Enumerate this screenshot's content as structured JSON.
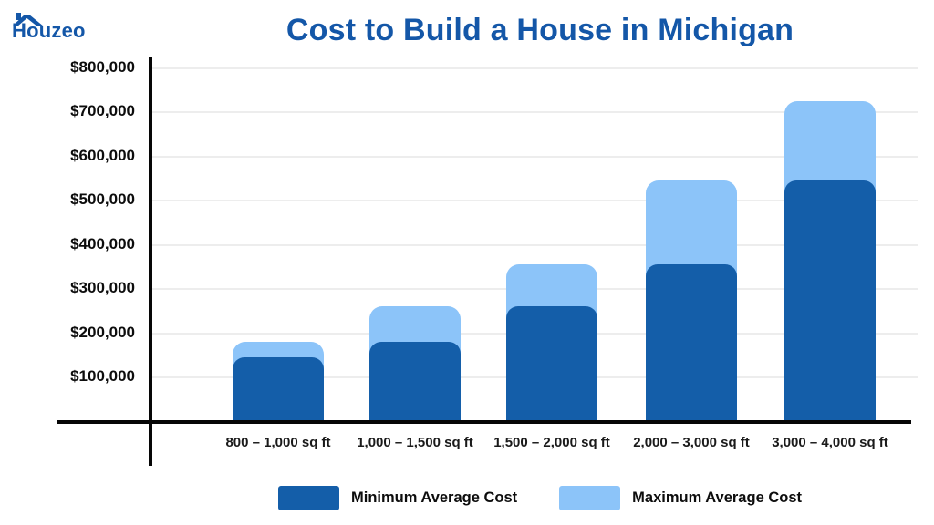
{
  "logo": {
    "text": "Houzeo"
  },
  "title": "Cost to Build a House in Michigan",
  "colors": {
    "brand_blue": "#1457A8",
    "min_bar": "#145EA9",
    "max_bar": "#8CC4F9",
    "axis": "#060606",
    "gridline": "#ededed"
  },
  "legend": [
    {
      "label": "Minimum Average Cost",
      "color": "#145EA9"
    },
    {
      "label": "Maximum Average Cost",
      "color": "#8CC4F9"
    }
  ],
  "chart_data": {
    "type": "bar",
    "title": "Cost to Build a House in Michigan",
    "categories": [
      "800 – 1,000 sq ft",
      "1,000 – 1,500 sq ft",
      "1,500 – 2,000 sq ft",
      "2,000 – 3,000 sq ft",
      "3,000 – 4,000 sq ft"
    ],
    "series": [
      {
        "name": "Minimum Average Cost",
        "color": "#145EA9",
        "values": [
          145000,
          180000,
          260000,
          355000,
          545000
        ]
      },
      {
        "name": "Maximum Average Cost",
        "color": "#8CC4F9",
        "values": [
          180000,
          260000,
          355000,
          545000,
          725000
        ]
      }
    ],
    "xlabel": "",
    "ylabel": "",
    "ylim": [
      0,
      800000
    ],
    "ytick_step": 100000,
    "ytick_labels": [
      "$100,000",
      "$200,000",
      "$300,000",
      "$400,000",
      "$500,000",
      "$600,000",
      "$700,000",
      "$800,000"
    ],
    "grid": true,
    "bar_style": "overlay",
    "legend_position": "bottom"
  }
}
